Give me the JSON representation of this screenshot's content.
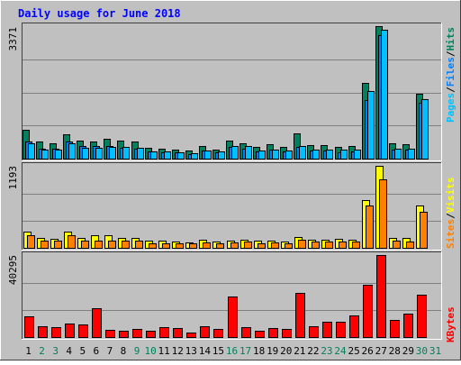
{
  "title": "Daily usage for June 2018",
  "colors": {
    "background": "#C0C0C0",
    "title": "#0000FF",
    "hits": "#00805C",
    "files": "#0080FF",
    "pages": "#00C0FF",
    "visits": "#FFFF00",
    "sites": "#FF8000",
    "kbytes": "#FF0000",
    "weekend_day": "#00805C",
    "weekday": "#000000"
  },
  "labels": {
    "hits": "Hits",
    "files": "Files",
    "pages": "Pages",
    "visits": "Visits",
    "sites": "Sites",
    "kbytes": "KBytes",
    "separator": "/"
  },
  "chart_data": [
    {
      "type": "bar",
      "panel": "hits-files-pages",
      "ymax_label": "3371",
      "ylim": [
        0,
        3371
      ],
      "categories": [
        "1",
        "2",
        "3",
        "4",
        "5",
        "6",
        "7",
        "8",
        "9",
        "10",
        "11",
        "12",
        "13",
        "14",
        "15",
        "16",
        "17",
        "18",
        "19",
        "20",
        "21",
        "22",
        "23",
        "24",
        "25",
        "26",
        "27",
        "28",
        "29",
        "30",
        "31"
      ],
      "series": [
        {
          "name": "Hits",
          "values": [
            740,
            430,
            390,
            620,
            460,
            440,
            500,
            470,
            430,
            270,
            260,
            240,
            200,
            330,
            240,
            460,
            380,
            290,
            370,
            300,
            640,
            340,
            340,
            290,
            320,
            1920,
            3371,
            390,
            370,
            1650,
            null
          ]
        },
        {
          "name": "Files",
          "values": [
            430,
            260,
            250,
            440,
            310,
            310,
            310,
            270,
            250,
            180,
            160,
            150,
            110,
            210,
            150,
            290,
            260,
            180,
            230,
            180,
            300,
            200,
            200,
            170,
            190,
            1480,
            3150,
            240,
            230,
            1430,
            null
          ]
        },
        {
          "name": "Pages",
          "values": [
            380,
            230,
            220,
            390,
            280,
            280,
            290,
            300,
            270,
            190,
            190,
            170,
            140,
            210,
            180,
            330,
            320,
            200,
            230,
            210,
            330,
            230,
            240,
            220,
            230,
            1720,
            3280,
            260,
            250,
            1510,
            null
          ]
        }
      ]
    },
    {
      "type": "bar",
      "panel": "visits-sites",
      "ymax_label": "1193",
      "ylim": [
        0,
        1193
      ],
      "categories": [
        "1",
        "2",
        "3",
        "4",
        "5",
        "6",
        "7",
        "8",
        "9",
        "10",
        "11",
        "12",
        "13",
        "14",
        "15",
        "16",
        "17",
        "18",
        "19",
        "20",
        "21",
        "22",
        "23",
        "24",
        "25",
        "26",
        "27",
        "28",
        "29",
        "30",
        "31"
      ],
      "series": [
        {
          "name": "Visits",
          "values": [
            230,
            150,
            130,
            240,
            150,
            190,
            180,
            140,
            140,
            100,
            100,
            90,
            80,
            120,
            90,
            110,
            120,
            100,
            110,
            90,
            160,
            120,
            120,
            130,
            120,
            700,
            1193,
            140,
            140,
            610,
            null
          ]
        },
        {
          "name": "Sites",
          "values": [
            180,
            110,
            110,
            180,
            110,
            110,
            110,
            100,
            100,
            70,
            70,
            70,
            60,
            80,
            70,
            80,
            90,
            70,
            80,
            70,
            120,
            90,
            90,
            90,
            90,
            620,
            990,
            100,
            90,
            520,
            null
          ]
        }
      ]
    },
    {
      "type": "bar",
      "panel": "kbytes",
      "ymax_label": "40295",
      "ylim": [
        0,
        40295
      ],
      "categories": [
        "1",
        "2",
        "3",
        "4",
        "5",
        "6",
        "7",
        "8",
        "9",
        "10",
        "11",
        "12",
        "13",
        "14",
        "15",
        "16",
        "17",
        "18",
        "19",
        "20",
        "21",
        "22",
        "23",
        "24",
        "25",
        "26",
        "27",
        "28",
        "29",
        "30",
        "31"
      ],
      "series": [
        {
          "name": "KBytes",
          "values": [
            10200,
            5200,
            4800,
            6700,
            6100,
            14200,
            3500,
            2900,
            4000,
            3000,
            4700,
            4400,
            2000,
            5400,
            3800,
            20000,
            4700,
            3200,
            4300,
            4200,
            21500,
            5100,
            7700,
            7600,
            10600,
            25600,
            40295,
            8300,
            11600,
            20900,
            null
          ]
        }
      ]
    }
  ],
  "x_labels": [
    {
      "text": "1",
      "weekend": false
    },
    {
      "text": "2",
      "weekend": true
    },
    {
      "text": "3",
      "weekend": true
    },
    {
      "text": "4",
      "weekend": false
    },
    {
      "text": "5",
      "weekend": false
    },
    {
      "text": "6",
      "weekend": false
    },
    {
      "text": "7",
      "weekend": false
    },
    {
      "text": "8",
      "weekend": false
    },
    {
      "text": "9",
      "weekend": true
    },
    {
      "text": "10",
      "weekend": true
    },
    {
      "text": "11",
      "weekend": false
    },
    {
      "text": "12",
      "weekend": false
    },
    {
      "text": "13",
      "weekend": false
    },
    {
      "text": "14",
      "weekend": false
    },
    {
      "text": "15",
      "weekend": false
    },
    {
      "text": "16",
      "weekend": true
    },
    {
      "text": "17",
      "weekend": true
    },
    {
      "text": "18",
      "weekend": false
    },
    {
      "text": "19",
      "weekend": false
    },
    {
      "text": "20",
      "weekend": false
    },
    {
      "text": "21",
      "weekend": false
    },
    {
      "text": "22",
      "weekend": false
    },
    {
      "text": "23",
      "weekend": true
    },
    {
      "text": "24",
      "weekend": true
    },
    {
      "text": "25",
      "weekend": false
    },
    {
      "text": "26",
      "weekend": false
    },
    {
      "text": "27",
      "weekend": false
    },
    {
      "text": "28",
      "weekend": false
    },
    {
      "text": "29",
      "weekend": false
    },
    {
      "text": "30",
      "weekend": true
    },
    {
      "text": "31",
      "weekend": true
    }
  ]
}
